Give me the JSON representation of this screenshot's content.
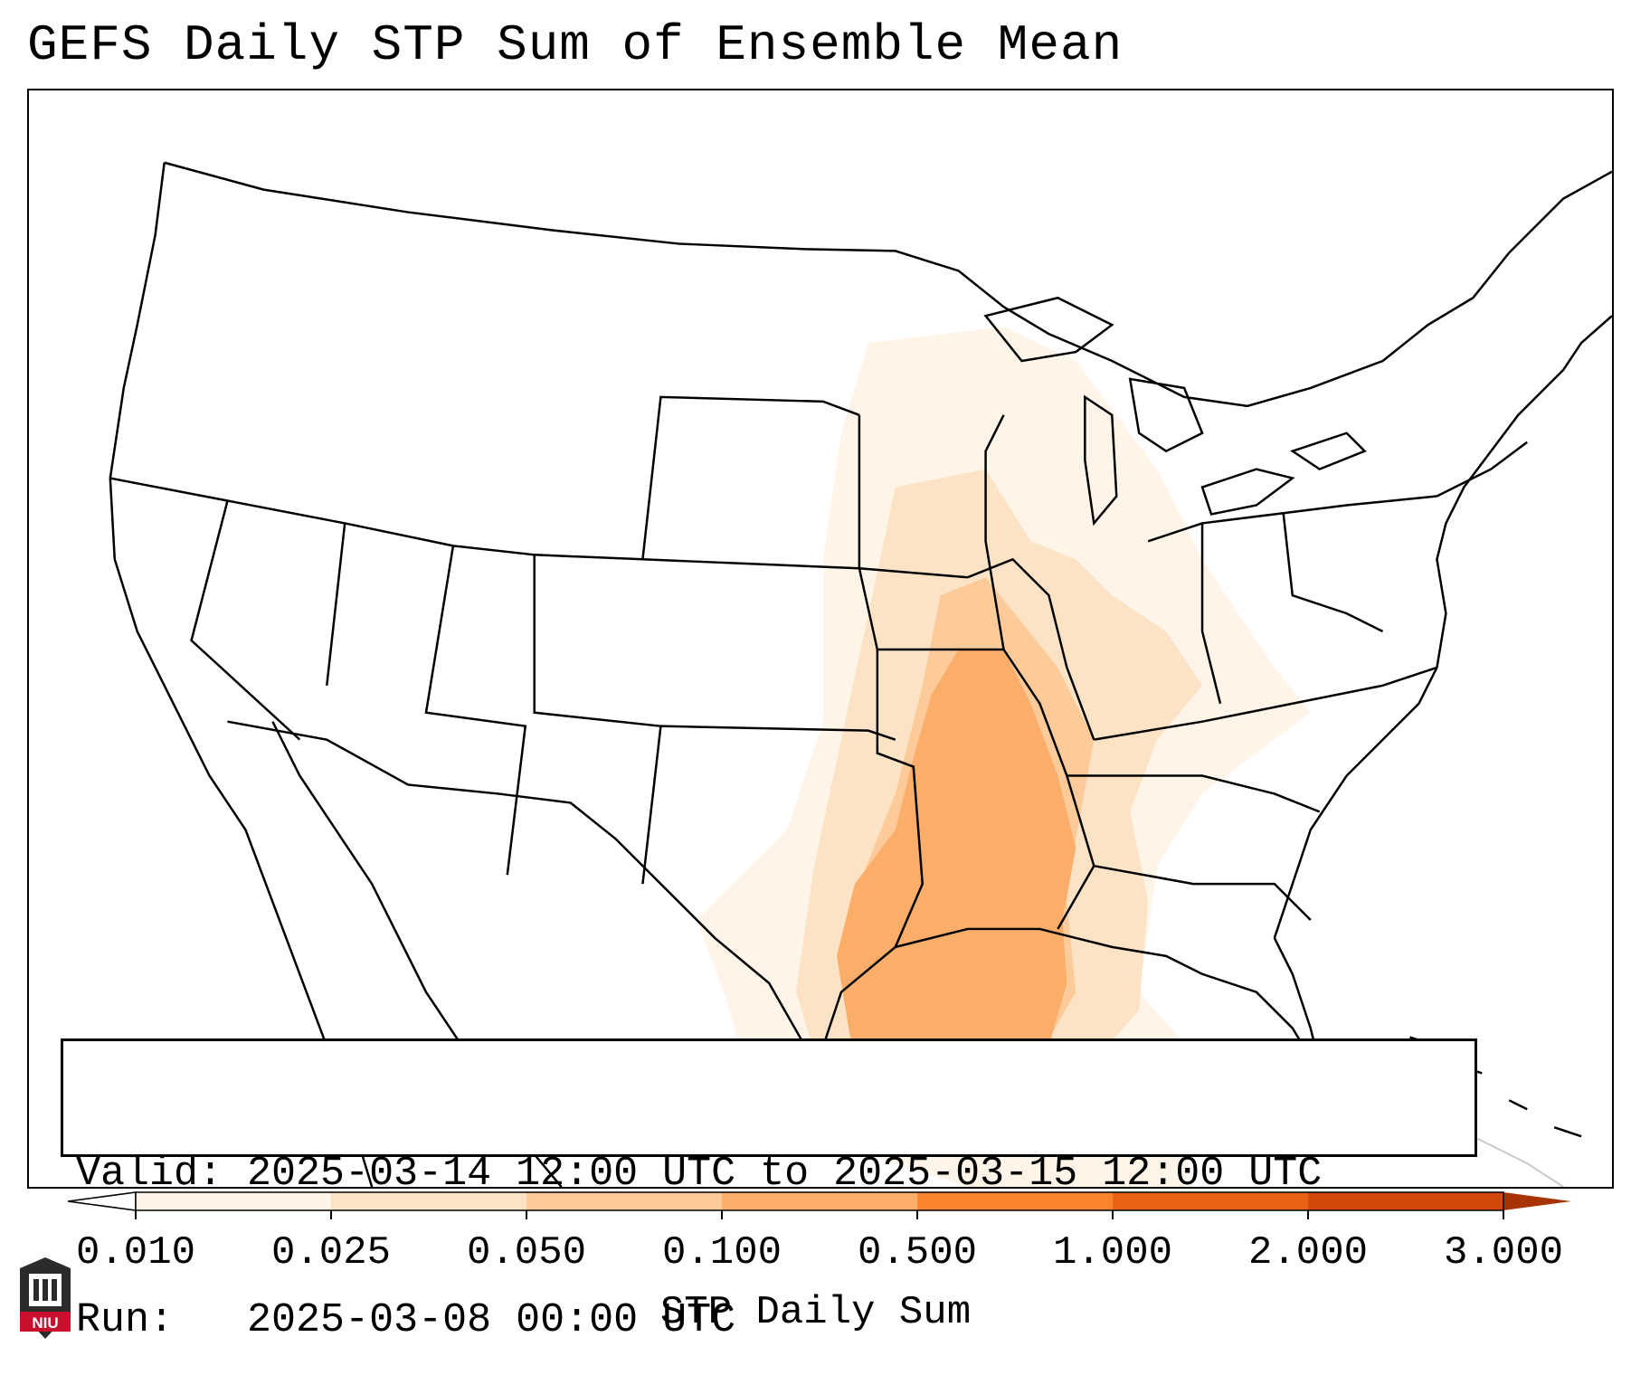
{
  "title": "GEFS Daily STP Sum of Ensemble Mean",
  "info": {
    "valid_label": "Valid:",
    "valid_value": "2025-03-14 12:00 UTC to 2025-03-15 12:00 UTC",
    "run_label": "Run:",
    "run_value": "2025-03-08 00:00 UTC"
  },
  "colorbar": {
    "label": "STP Daily Sum",
    "ticks": [
      "0.010",
      "0.025",
      "0.050",
      "0.100",
      "0.500",
      "1.000",
      "2.000",
      "3.000"
    ],
    "colors": [
      "#fff4e8",
      "#fde3c6",
      "#fdcb9a",
      "#fbad6a",
      "#f8842e",
      "#ea6314",
      "#d44908"
    ],
    "extend": "both"
  },
  "logo": {
    "text": "NIU",
    "colors": {
      "dark": "#2b2b2b",
      "red": "#c8102e"
    }
  },
  "shading": {
    "colors": {
      "level1": "#fff4e8",
      "level2": "#fde3c6",
      "level3": "#fdcb9a",
      "level4": "#fbad6a"
    }
  }
}
